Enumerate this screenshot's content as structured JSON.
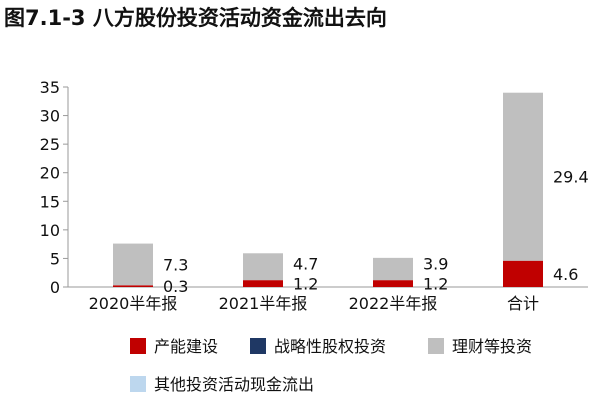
{
  "title": "图7.1-3 八方股份投资活动资金流出去向",
  "chart_data": {
    "type": "bar",
    "stacked": true,
    "title": "图7.1-3 八方股份投资活动资金流出去向",
    "categories": [
      "2020半年报",
      "2021半年报",
      "2022半年报",
      "合计"
    ],
    "series": [
      {
        "name": "产能建设",
        "color": "#C00000",
        "values": [
          0.3,
          1.2,
          1.2,
          4.6
        ]
      },
      {
        "name": "战略性股权投资",
        "color": "#1F3864",
        "values": [
          0,
          0,
          0,
          0
        ]
      },
      {
        "name": "理财等投资",
        "color": "#BFBFBF",
        "values": [
          7.3,
          4.7,
          3.9,
          29.4
        ]
      },
      {
        "name": "其他投资活动现金流出",
        "color": "#BDD7EE",
        "values": [
          0,
          0,
          0,
          0
        ]
      }
    ],
    "data_labels": [
      [
        "0.3",
        "1.2",
        "1.2",
        "4.6"
      ],
      [],
      [
        "7.3",
        "4.7",
        "3.9",
        "29.4"
      ],
      []
    ],
    "ylim": [
      0,
      35
    ],
    "yticks": [
      0,
      5,
      10,
      15,
      20,
      25,
      30,
      35
    ],
    "xlabel": "",
    "ylabel": "",
    "grid": false,
    "legend_position": "bottom"
  }
}
